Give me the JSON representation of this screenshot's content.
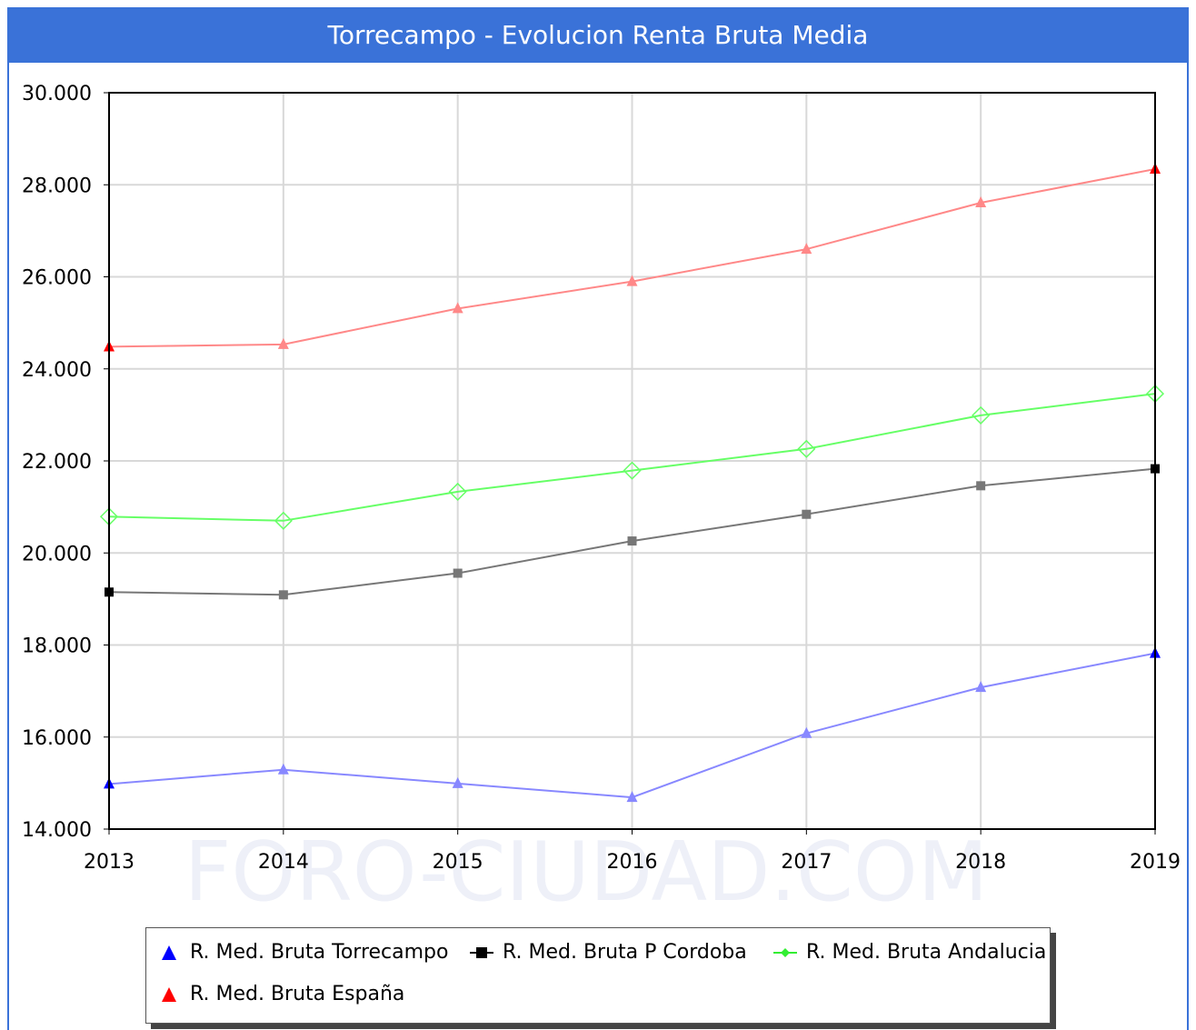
{
  "title": "Torrecampo - Evolucion Renta Bruta Media",
  "watermark": "FORO-CIUDAD.COM",
  "colors": {
    "header": "#3a72d8",
    "torrecampo": "#8888ff",
    "torrecampo_marker": "#0000ff",
    "cordoba": "#777777",
    "cordoba_marker": "#000000",
    "andalucia": "#66ff66",
    "espana": "#ff8888",
    "espana_marker": "#ff0000"
  },
  "chart_data": {
    "type": "line",
    "title": "Torrecampo - Evolucion Renta Bruta Media",
    "x": [
      "2013",
      "2014",
      "2015",
      "2016",
      "2017",
      "2018",
      "2019"
    ],
    "ylim": [
      14000,
      30000
    ],
    "yticks": [
      "14.000",
      "16.000",
      "18.000",
      "20.000",
      "22.000",
      "24.000",
      "26.000",
      "28.000",
      "30.000"
    ],
    "grid": true,
    "legend_position": "bottom",
    "series": [
      {
        "name": "R. Med. Bruta Torrecampo",
        "marker": "triangle",
        "values": [
          14980,
          15290,
          14990,
          14690,
          16080,
          17080,
          17820
        ]
      },
      {
        "name": "R. Med. Bruta P Cordoba",
        "marker": "square",
        "values": [
          19150,
          19090,
          19560,
          20260,
          20840,
          21460,
          21830
        ]
      },
      {
        "name": "R. Med. Bruta Andalucia",
        "marker": "diamond",
        "values": [
          20790,
          20700,
          21330,
          21790,
          22260,
          22990,
          23460
        ]
      },
      {
        "name": "R. Med. Bruta España",
        "marker": "triangle",
        "values": [
          24480,
          24530,
          25310,
          25900,
          26600,
          27610,
          28340
        ]
      }
    ]
  },
  "legend": {
    "items": [
      {
        "label": "R. Med. Bruta Torrecampo"
      },
      {
        "label": "R. Med. Bruta P Cordoba"
      },
      {
        "label": "R. Med. Bruta Andalucia"
      },
      {
        "label": "R. Med. Bruta España"
      }
    ]
  }
}
